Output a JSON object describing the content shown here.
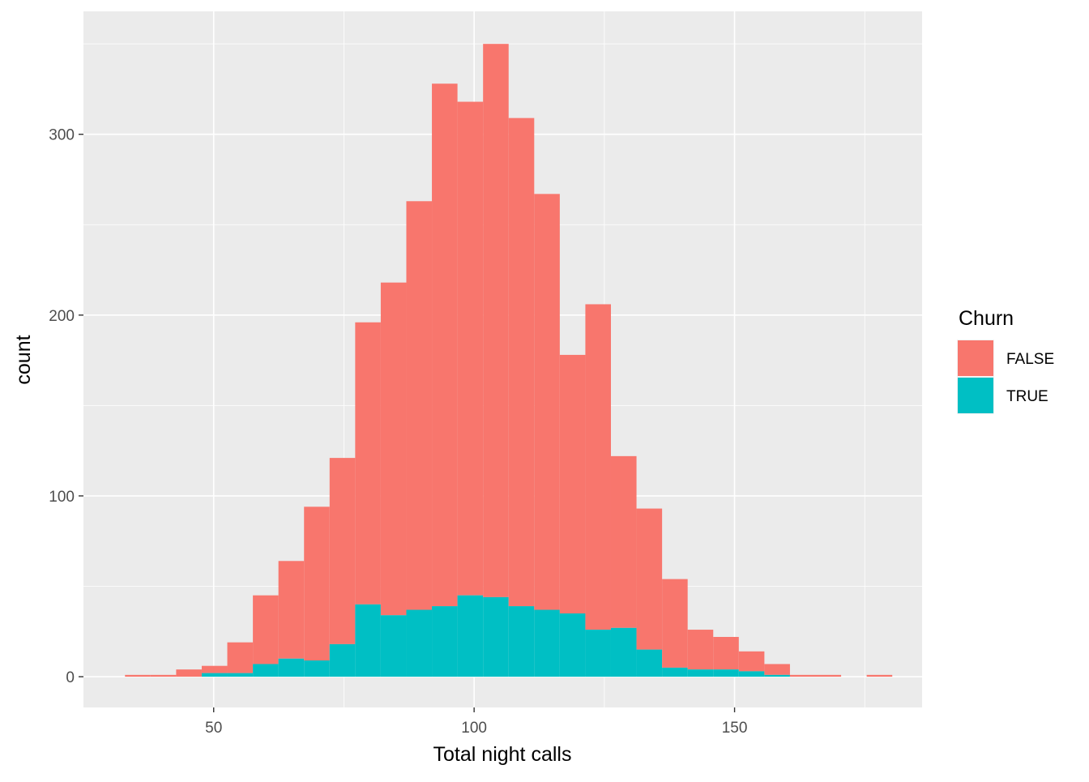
{
  "chart_data": {
    "type": "bar",
    "subtype": "stacked-histogram",
    "title": "",
    "xlabel": "Total night calls",
    "ylabel": "count",
    "xlim": [
      25,
      186
    ],
    "ylim": [
      -17,
      368
    ],
    "x_ticks": [
      50,
      100,
      150
    ],
    "y_ticks": [
      0,
      100,
      200,
      300
    ],
    "x_minor_ticks": [
      75,
      125,
      175
    ],
    "y_minor_ticks": [
      50,
      150,
      250,
      350
    ],
    "grid": true,
    "legend_position": "right",
    "legend_title": "Churn",
    "bin_width": 4.91,
    "bin_centers": [
      35.43,
      40.34,
      45.25,
      50.16,
      55.07,
      59.98,
      64.89,
      69.8,
      74.71,
      79.62,
      84.53,
      89.44,
      94.35,
      99.26,
      104.17,
      109.08,
      113.99,
      118.9,
      123.81,
      128.72,
      133.63,
      138.54,
      143.45,
      148.36,
      153.27,
      158.18,
      163.09,
      168.0,
      172.91,
      177.82
    ],
    "series": [
      {
        "name": "FALSE",
        "color": "#F8766D",
        "values": [
          1,
          1,
          4,
          4,
          17,
          38,
          54,
          85,
          103,
          156,
          184,
          226,
          289,
          273,
          306,
          270,
          230,
          143,
          180,
          95,
          78,
          49,
          22,
          18,
          11,
          6,
          1,
          1,
          0,
          1
        ]
      },
      {
        "name": "TRUE",
        "color": "#00BFC4",
        "values": [
          0,
          0,
          0,
          2,
          2,
          7,
          10,
          9,
          18,
          40,
          34,
          37,
          39,
          45,
          44,
          39,
          37,
          35,
          26,
          27,
          15,
          5,
          4,
          4,
          3,
          1,
          0,
          0,
          0,
          0
        ]
      }
    ],
    "stack_totals": [
      1,
      1,
      4,
      6,
      19,
      45,
      64,
      94,
      121,
      196,
      218,
      263,
      328,
      318,
      350,
      309,
      267,
      178,
      206,
      122,
      93,
      54,
      26,
      22,
      14,
      7,
      1,
      1,
      0,
      1
    ]
  }
}
